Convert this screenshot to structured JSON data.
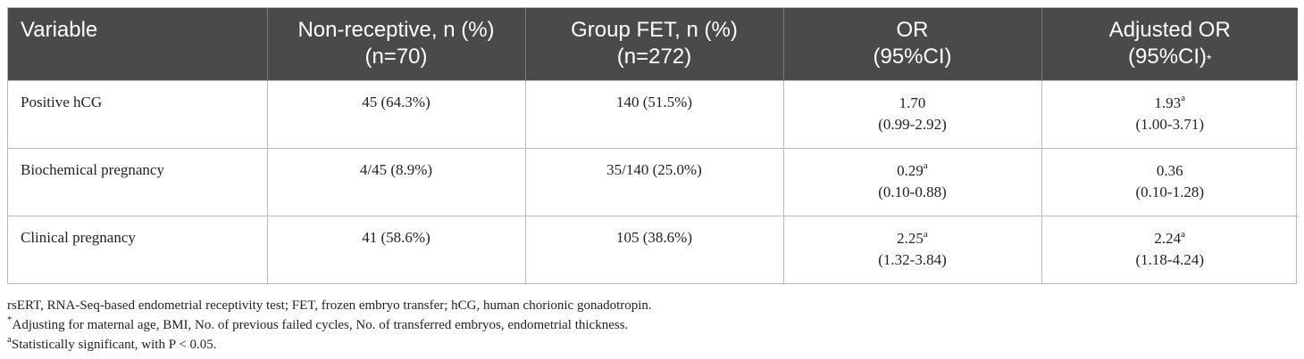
{
  "table": {
    "headers": [
      {
        "line1": "Variable",
        "line2": "",
        "mark": ""
      },
      {
        "line1": "Non-receptive, n (%)",
        "line2": "(n=70)",
        "mark": ""
      },
      {
        "line1": "Group FET, n (%)",
        "line2": "(n=272)",
        "mark": ""
      },
      {
        "line1": "OR",
        "line2": "(95%CI)",
        "mark": ""
      },
      {
        "line1": "Adjusted OR",
        "line2": "(95%CI)",
        "mark": "*"
      }
    ],
    "rows": [
      {
        "variable": "Positive hCG",
        "non_receptive": "45 (64.3%)",
        "group_fet": "140 (51.5%)",
        "or_value": "1.70",
        "or_sup": "",
        "or_ci": "(0.99-2.92)",
        "adj_value": "1.93",
        "adj_sup": "a",
        "adj_ci": "(1.00-3.71)"
      },
      {
        "variable": "Biochemical pregnancy",
        "non_receptive": "4/45 (8.9%)",
        "group_fet": "35/140 (25.0%)",
        "or_value": "0.29",
        "or_sup": "a",
        "or_ci": "(0.10-0.88)",
        "adj_value": "0.36",
        "adj_sup": "",
        "adj_ci": "(0.10-1.28)"
      },
      {
        "variable": "Clinical pregnancy",
        "non_receptive": "41 (58.6%)",
        "group_fet": "105 (38.6%)",
        "or_value": "2.25",
        "or_sup": "a",
        "or_ci": "(1.32-3.84)",
        "adj_value": "2.24",
        "adj_sup": "a",
        "adj_ci": "(1.18-4.24)"
      }
    ]
  },
  "footnotes": {
    "abbreviations": "rsERT, RNA-Seq-based endometrial receptivity test; FET, frozen embryo transfer; hCG, human chorionic gonadotropin.",
    "adjust_mark": "*",
    "adjust_text": "Adjusting for maternal age, BMI, No. of previous failed cycles, No. of transferred embryos, endometrial thickness.",
    "sig_mark": "a",
    "sig_text": "Statistically significant, with P < 0.05."
  }
}
